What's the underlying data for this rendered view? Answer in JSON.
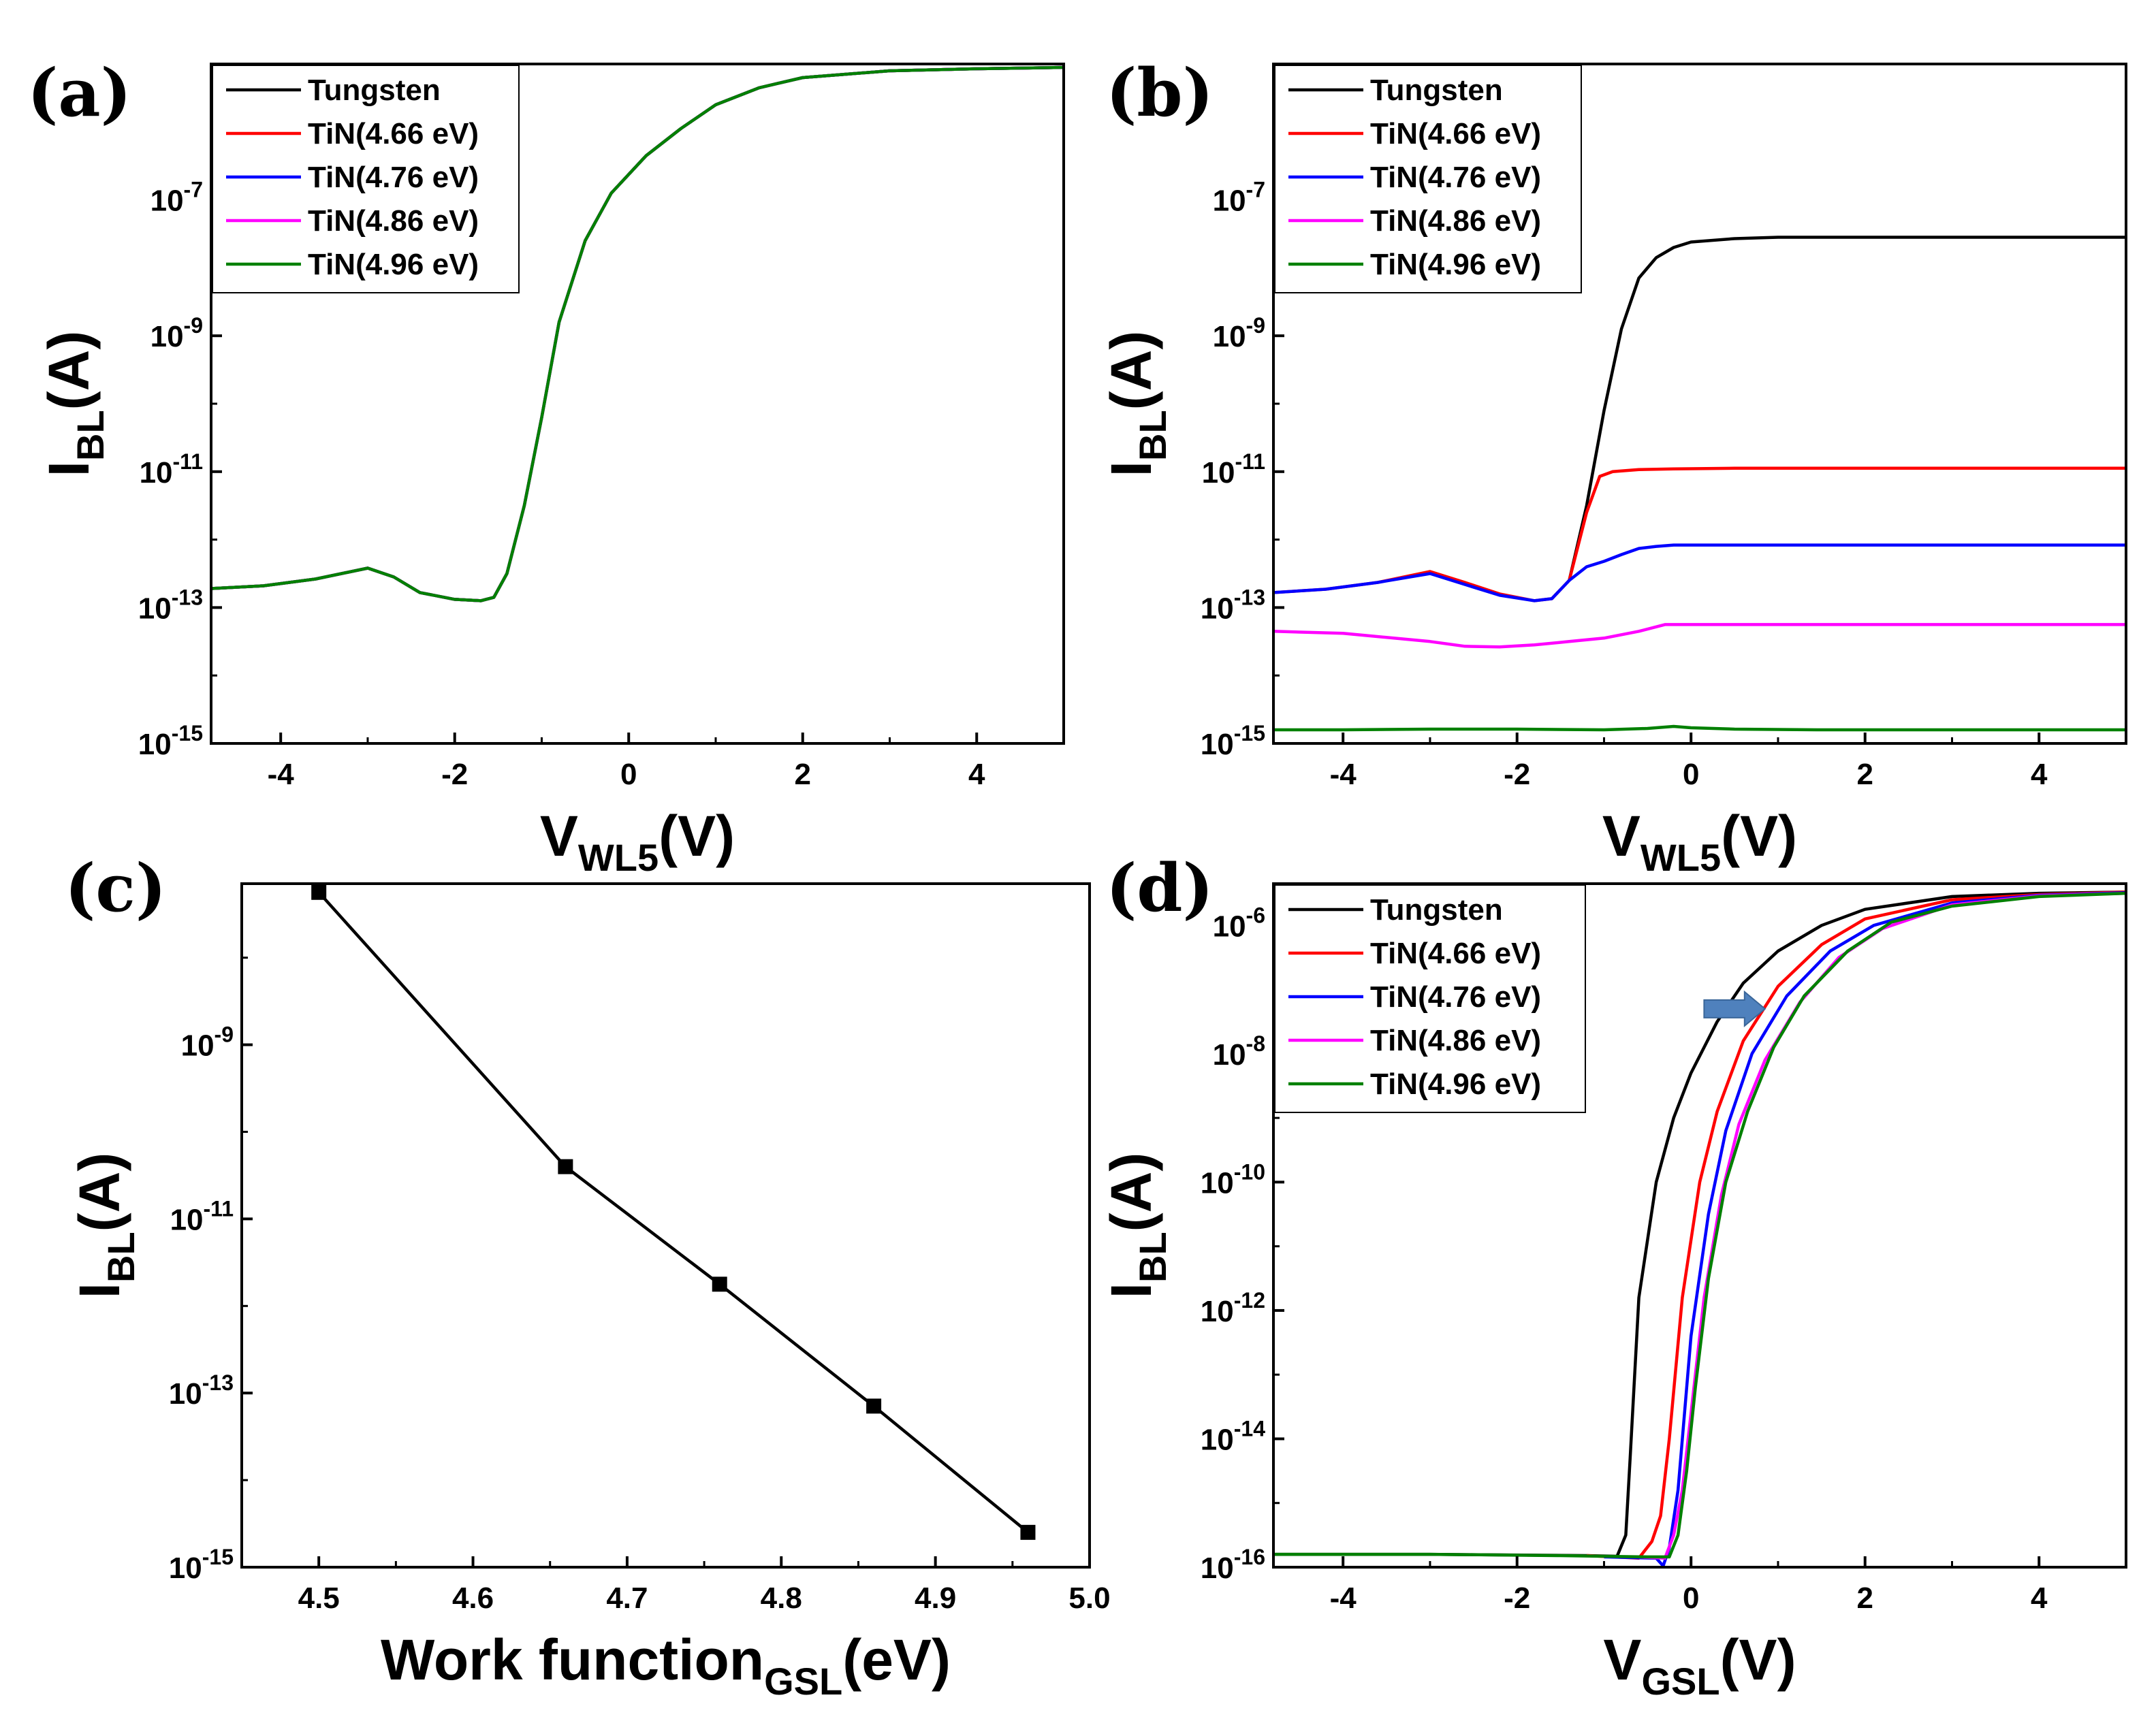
{
  "colors": {
    "Tungsten": "#000000",
    "TiN(4.66 eV)": "#ff0000",
    "TiN(4.76 eV)": "#0000ff",
    "TiN(4.86 eV)": "#ff00ff",
    "TiN(4.96 eV)": "#008000",
    "arrow": "#4f81bd"
  },
  "chart_data": [
    {
      "id": "a",
      "panel_label": "(a)",
      "type": "line",
      "xlabel": {
        "main": "V",
        "sub": "WL5",
        "tail": "(V)"
      },
      "ylabel": {
        "main": "I",
        "sub": "BL",
        "tail": "(A)"
      },
      "xlim": [
        -4.8,
        5.0
      ],
      "ylim_log10": [
        -15,
        -5.0
      ],
      "y_scale": "log",
      "xticks": [
        -4,
        -2,
        0,
        2,
        4
      ],
      "xtick_labels": [
        "-4",
        "-2",
        "0",
        "2",
        "4"
      ],
      "yticks_log10": [
        -15,
        -13,
        -11,
        -9,
        -7
      ],
      "ytick_labels": [
        [
          "10",
          "-15"
        ],
        [
          "10",
          "-13"
        ],
        [
          "10",
          "-11"
        ],
        [
          "10",
          "-9"
        ],
        [
          "10",
          "-7"
        ]
      ],
      "legend_position": "top-left",
      "legend": [
        "Tungsten",
        "TiN(4.66 eV)",
        "TiN(4.76 eV)",
        "TiN(4.86 eV)",
        "TiN(4.96 eV)"
      ],
      "series": [
        {
          "name": "Tungsten",
          "x": [
            -4.8,
            -4.2,
            -3.6,
            -3.0,
            -2.7,
            -2.4,
            -2.0,
            -1.7,
            -1.55,
            -1.4,
            -1.2,
            -1.0,
            -0.8,
            -0.5,
            -0.2,
            0.2,
            0.6,
            1.0,
            1.5,
            2.0,
            3.0,
            4.0,
            5.0
          ],
          "y": [
            -12.72,
            -12.68,
            -12.58,
            -12.42,
            -12.55,
            -12.78,
            -12.88,
            -12.9,
            -12.85,
            -12.5,
            -11.5,
            -10.2,
            -8.8,
            -7.6,
            -6.9,
            -6.35,
            -5.95,
            -5.6,
            -5.35,
            -5.2,
            -5.1,
            -5.07,
            -5.05
          ]
        },
        {
          "name": "TiN(4.66 eV)",
          "x": [
            -4.8,
            -4.2,
            -3.6,
            -3.0,
            -2.7,
            -2.4,
            -2.0,
            -1.7,
            -1.55,
            -1.4,
            -1.2,
            -1.0,
            -0.8,
            -0.5,
            -0.2,
            0.2,
            0.6,
            1.0,
            1.5,
            2.0,
            3.0,
            4.0,
            5.0
          ],
          "y": [
            -12.72,
            -12.68,
            -12.58,
            -12.42,
            -12.55,
            -12.78,
            -12.88,
            -12.9,
            -12.85,
            -12.5,
            -11.5,
            -10.2,
            -8.8,
            -7.6,
            -6.9,
            -6.35,
            -5.95,
            -5.6,
            -5.35,
            -5.2,
            -5.1,
            -5.07,
            -5.05
          ]
        },
        {
          "name": "TiN(4.76 eV)",
          "x": [
            -4.8,
            -4.2,
            -3.6,
            -3.0,
            -2.7,
            -2.4,
            -2.0,
            -1.7,
            -1.55,
            -1.4,
            -1.2,
            -1.0,
            -0.8,
            -0.5,
            -0.2,
            0.2,
            0.6,
            1.0,
            1.5,
            2.0,
            3.0,
            4.0,
            5.0
          ],
          "y": [
            -12.72,
            -12.68,
            -12.58,
            -12.42,
            -12.55,
            -12.78,
            -12.88,
            -12.9,
            -12.85,
            -12.5,
            -11.5,
            -10.2,
            -8.8,
            -7.6,
            -6.9,
            -6.35,
            -5.95,
            -5.6,
            -5.35,
            -5.2,
            -5.1,
            -5.07,
            -5.05
          ]
        },
        {
          "name": "TiN(4.86 eV)",
          "x": [
            -4.8,
            -4.2,
            -3.6,
            -3.0,
            -2.7,
            -2.4,
            -2.0,
            -1.7,
            -1.55,
            -1.4,
            -1.2,
            -1.0,
            -0.8,
            -0.5,
            -0.2,
            0.2,
            0.6,
            1.0,
            1.5,
            2.0,
            3.0,
            4.0,
            5.0
          ],
          "y": [
            -12.72,
            -12.68,
            -12.58,
            -12.42,
            -12.55,
            -12.78,
            -12.88,
            -12.9,
            -12.85,
            -12.5,
            -11.5,
            -10.2,
            -8.8,
            -7.6,
            -6.9,
            -6.35,
            -5.95,
            -5.6,
            -5.35,
            -5.2,
            -5.1,
            -5.07,
            -5.05
          ]
        },
        {
          "name": "TiN(4.96 eV)",
          "x": [
            -4.8,
            -4.2,
            -3.6,
            -3.0,
            -2.7,
            -2.4,
            -2.0,
            -1.7,
            -1.55,
            -1.4,
            -1.2,
            -1.0,
            -0.8,
            -0.5,
            -0.2,
            0.2,
            0.6,
            1.0,
            1.5,
            2.0,
            3.0,
            4.0,
            5.0
          ],
          "y": [
            -12.72,
            -12.68,
            -12.58,
            -12.42,
            -12.55,
            -12.78,
            -12.88,
            -12.9,
            -12.85,
            -12.5,
            -11.5,
            -10.2,
            -8.8,
            -7.6,
            -6.9,
            -6.35,
            -5.95,
            -5.6,
            -5.35,
            -5.2,
            -5.1,
            -5.07,
            -5.05
          ]
        }
      ]
    },
    {
      "id": "b",
      "panel_label": "(b)",
      "type": "line",
      "xlabel": {
        "main": "V",
        "sub": "WL5",
        "tail": "(V)"
      },
      "ylabel": {
        "main": "I",
        "sub": "BL",
        "tail": "(A)"
      },
      "xlim": [
        -4.8,
        5.0
      ],
      "ylim_log10": [
        -15,
        -5.0
      ],
      "y_scale": "log",
      "xticks": [
        -4,
        -2,
        0,
        2,
        4
      ],
      "xtick_labels": [
        "-4",
        "-2",
        "0",
        "2",
        "4"
      ],
      "yticks_log10": [
        -15,
        -13,
        -11,
        -9,
        -7
      ],
      "ytick_labels": [
        [
          "10",
          "-15"
        ],
        [
          "10",
          "-13"
        ],
        [
          "10",
          "-11"
        ],
        [
          "10",
          "-9"
        ],
        [
          "10",
          "-7"
        ]
      ],
      "legend_position": "top-left",
      "legend": [
        "Tungsten",
        "TiN(4.66 eV)",
        "TiN(4.76 eV)",
        "TiN(4.86 eV)",
        "TiN(4.96 eV)"
      ],
      "series": [
        {
          "name": "Tungsten",
          "x": [
            -1.4,
            -1.2,
            -1.0,
            -0.8,
            -0.6,
            -0.4,
            -0.2,
            0.0,
            0.5,
            1.0,
            2.0,
            3.0,
            4.0,
            5.0
          ],
          "y": [
            -12.6,
            -11.5,
            -10.1,
            -8.9,
            -8.15,
            -7.85,
            -7.7,
            -7.62,
            -7.57,
            -7.55,
            -7.55,
            -7.55,
            -7.55,
            -7.55
          ]
        },
        {
          "name": "TiN(4.66 eV)",
          "x": [
            -4.8,
            -4.2,
            -3.6,
            -3.0,
            -2.6,
            -2.2,
            -1.8,
            -1.6,
            -1.4,
            -1.2,
            -1.05,
            -0.9,
            -0.6,
            -0.2,
            0.5,
            2.0,
            3.5,
            5.0
          ],
          "y": [
            -12.78,
            -12.73,
            -12.63,
            -12.47,
            -12.63,
            -12.8,
            -12.9,
            -12.87,
            -12.6,
            -11.6,
            -11.07,
            -11.0,
            -10.97,
            -10.96,
            -10.95,
            -10.95,
            -10.95,
            -10.95
          ]
        },
        {
          "name": "TiN(4.76 eV)",
          "x": [
            -4.8,
            -4.2,
            -3.6,
            -3.0,
            -2.6,
            -2.2,
            -1.8,
            -1.6,
            -1.4,
            -1.2,
            -1.0,
            -0.8,
            -0.6,
            -0.4,
            -0.2,
            0.2,
            1.0,
            2.5,
            5.0
          ],
          "y": [
            -12.78,
            -12.73,
            -12.63,
            -12.5,
            -12.66,
            -12.82,
            -12.9,
            -12.87,
            -12.6,
            -12.4,
            -12.32,
            -12.22,
            -12.13,
            -12.1,
            -12.08,
            -12.08,
            -12.08,
            -12.08,
            -12.08
          ]
        },
        {
          "name": "TiN(4.86 eV)",
          "x": [
            -4.8,
            -4.0,
            -3.0,
            -2.6,
            -2.2,
            -1.8,
            -1.4,
            -1.0,
            -0.6,
            -0.3,
            0.0,
            1.0,
            2.5,
            5.0
          ],
          "y": [
            -13.35,
            -13.38,
            -13.5,
            -13.57,
            -13.58,
            -13.55,
            -13.5,
            -13.45,
            -13.35,
            -13.25,
            -13.25,
            -13.25,
            -13.25,
            -13.25
          ]
        },
        {
          "name": "TiN(4.96 eV)",
          "x": [
            -4.8,
            -4.0,
            -3.0,
            -2.0,
            -1.0,
            -0.5,
            -0.2,
            0.0,
            0.5,
            1.5,
            3.0,
            5.0
          ],
          "y": [
            -14.8,
            -14.8,
            -14.79,
            -14.79,
            -14.8,
            -14.78,
            -14.75,
            -14.77,
            -14.79,
            -14.8,
            -14.8,
            -14.8
          ]
        }
      ]
    },
    {
      "id": "c",
      "panel_label": "(c)",
      "type": "line",
      "xlabel": {
        "main": "Work function",
        "sub": "GSL",
        "tail": "(eV)"
      },
      "ylabel": {
        "main": "I",
        "sub": "BL",
        "tail": "(A)"
      },
      "xlim": [
        4.45,
        5.0
      ],
      "ylim_log10": [
        -15,
        -7.15
      ],
      "y_scale": "log",
      "xticks": [
        4.5,
        4.6,
        4.7,
        4.8,
        4.9,
        5.0
      ],
      "xtick_labels": [
        "4.5",
        "4.6",
        "4.7",
        "4.8",
        "4.9",
        "5.0"
      ],
      "yticks_log10": [
        -15,
        -13,
        -11,
        -9
      ],
      "ytick_labels": [
        [
          "10",
          "-15"
        ],
        [
          "10",
          "-13"
        ],
        [
          "10",
          "-11"
        ],
        [
          "10",
          "-9"
        ]
      ],
      "legend_position": "none",
      "legend": [],
      "series": [
        {
          "name": "",
          "x": [
            4.5,
            4.66,
            4.76,
            4.86,
            4.96
          ],
          "y": [
            -7.25,
            -10.4,
            -11.75,
            -13.15,
            -14.6
          ]
        }
      ]
    },
    {
      "id": "d",
      "panel_label": "(d)",
      "type": "line",
      "xlabel": {
        "main": "V",
        "sub": "GSL",
        "tail": "(V)"
      },
      "ylabel": {
        "main": "I",
        "sub": "BL",
        "tail": "(A)"
      },
      "xlim": [
        -4.8,
        5.0
      ],
      "ylim_log10": [
        -16,
        -5.35
      ],
      "y_scale": "log",
      "xticks": [
        -4,
        -2,
        0,
        2,
        4
      ],
      "xtick_labels": [
        "-4",
        "-2",
        "0",
        "2",
        "4"
      ],
      "yticks_log10": [
        -16,
        -14,
        -12,
        -10,
        -8,
        -6
      ],
      "ytick_labels": [
        [
          "10",
          "-16"
        ],
        [
          "10",
          "-14"
        ],
        [
          "10",
          "-12"
        ],
        [
          "10",
          "-10"
        ],
        [
          "10",
          "-8"
        ],
        [
          "10",
          "-6"
        ]
      ],
      "legend_position": "top-left",
      "legend": [
        "Tungsten",
        "TiN(4.66 eV)",
        "TiN(4.76 eV)",
        "TiN(4.86 eV)",
        "TiN(4.96 eV)"
      ],
      "arrow_annotation": {
        "x_from": 0.15,
        "x_to": 0.85,
        "y": -7.3
      },
      "series": [
        {
          "name": "Tungsten",
          "x": [
            -4.8,
            -3.0,
            -1.2,
            -0.85,
            -0.75,
            -0.7,
            -0.6,
            -0.4,
            -0.2,
            0.0,
            0.3,
            0.6,
            1.0,
            1.5,
            2.0,
            3.0,
            4.0,
            5.0
          ],
          "y": [
            -15.8,
            -15.8,
            -15.82,
            -15.83,
            -15.5,
            -14.3,
            -11.8,
            -10.0,
            -9.0,
            -8.3,
            -7.5,
            -6.9,
            -6.4,
            -6.0,
            -5.75,
            -5.55,
            -5.5,
            -5.48
          ]
        },
        {
          "name": "TiN(4.66 eV)",
          "x": [
            -1.2,
            -0.6,
            -0.45,
            -0.35,
            -0.25,
            -0.1,
            0.1,
            0.3,
            0.6,
            1.0,
            1.5,
            2.0,
            3.0,
            4.0,
            5.0
          ],
          "y": [
            -15.82,
            -15.86,
            -15.6,
            -15.2,
            -14.0,
            -11.8,
            -10.0,
            -8.9,
            -7.8,
            -6.95,
            -6.3,
            -5.9,
            -5.6,
            -5.52,
            -5.48
          ]
        },
        {
          "name": "TiN(4.76 eV)",
          "x": [
            -1.0,
            -0.4,
            -0.32,
            -0.25,
            -0.15,
            0.0,
            0.2,
            0.4,
            0.7,
            1.1,
            1.6,
            2.1,
            3.0,
            4.0,
            5.0
          ],
          "y": [
            -15.84,
            -15.86,
            -15.98,
            -15.7,
            -14.8,
            -12.4,
            -10.5,
            -9.2,
            -8.0,
            -7.1,
            -6.4,
            -6.0,
            -5.65,
            -5.53,
            -5.49
          ]
        },
        {
          "name": "TiN(4.86 eV)",
          "x": [
            -0.6,
            -0.3,
            -0.2,
            -0.1,
            0.0,
            0.15,
            0.35,
            0.55,
            0.85,
            1.25,
            1.7,
            2.2,
            3.0,
            4.0,
            5.0
          ],
          "y": [
            -15.84,
            -15.86,
            -15.5,
            -14.8,
            -13.6,
            -11.8,
            -10.2,
            -9.1,
            -8.1,
            -7.2,
            -6.5,
            -6.05,
            -5.68,
            -5.54,
            -5.5
          ]
        },
        {
          "name": "TiN(4.96 eV)",
          "x": [
            -4.8,
            -3.0,
            -1.5,
            -0.5,
            -0.25,
            -0.15,
            -0.05,
            0.05,
            0.2,
            0.4,
            0.65,
            0.95,
            1.3,
            1.8,
            2.3,
            3.0,
            4.0,
            5.0
          ],
          "y": [
            -15.8,
            -15.8,
            -15.82,
            -15.84,
            -15.84,
            -15.5,
            -14.5,
            -13.2,
            -11.5,
            -10.0,
            -8.9,
            -7.9,
            -7.1,
            -6.4,
            -5.95,
            -5.7,
            -5.55,
            -5.5
          ]
        }
      ]
    }
  ]
}
